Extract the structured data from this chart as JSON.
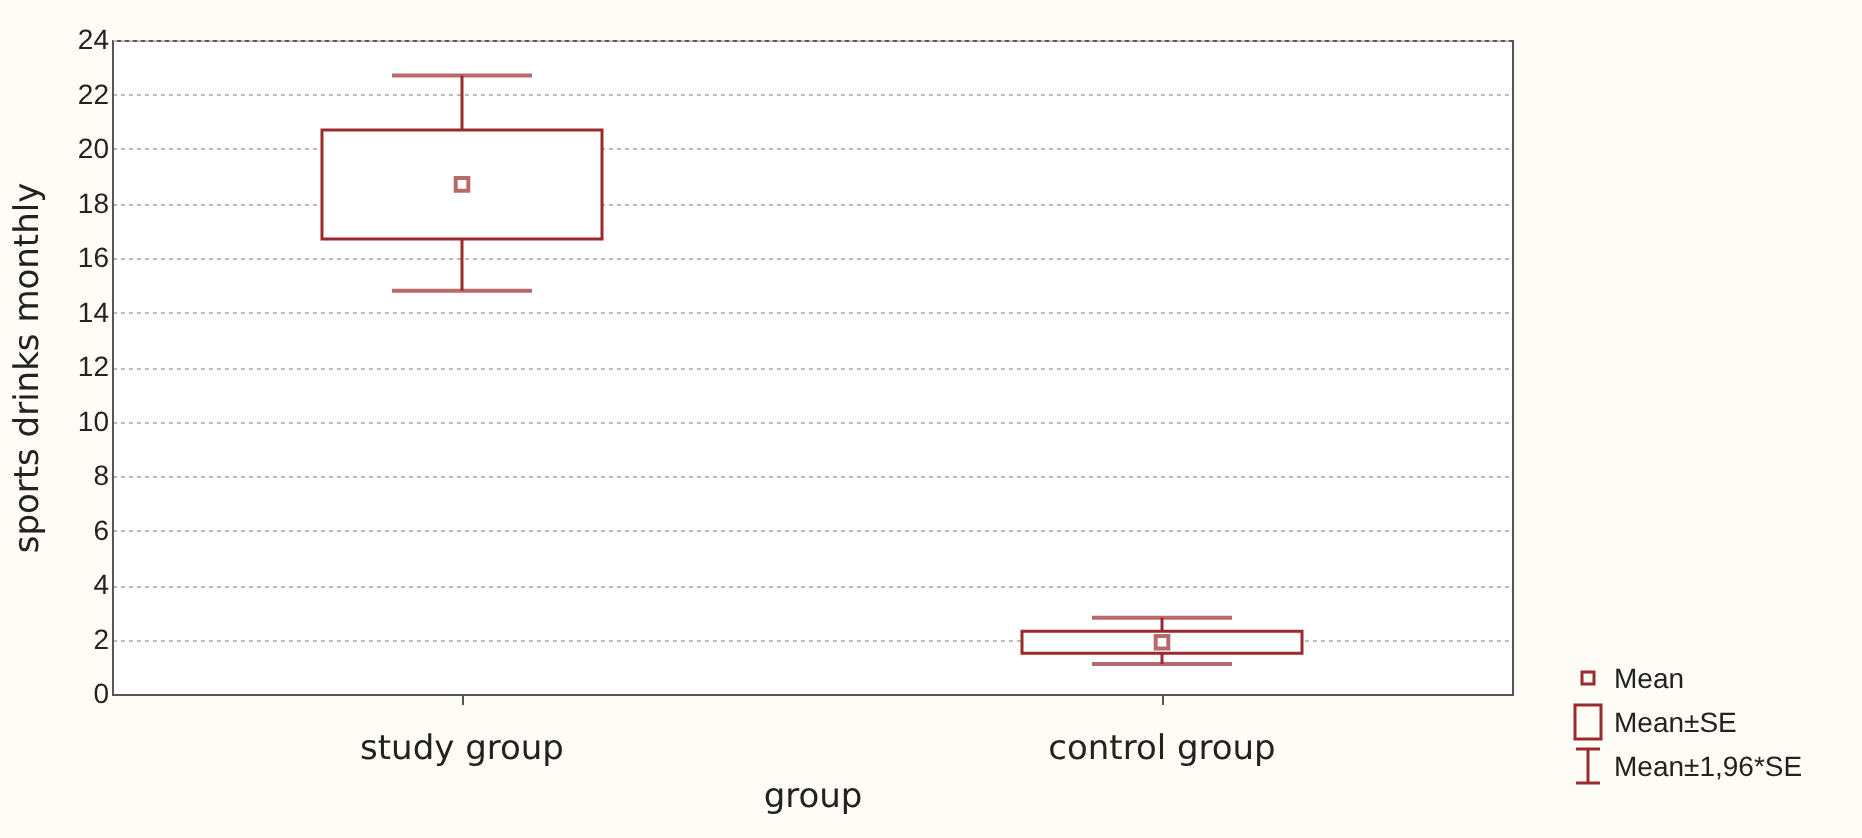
{
  "chart_data": {
    "type": "box",
    "categories": [
      "study group",
      "control group"
    ],
    "xlabel": "group",
    "ylabel": "sports drinks monthly",
    "color": "#9b2a2e",
    "boxes": [
      {
        "low": 14.8,
        "q1": 16.7,
        "q3": 20.7,
        "high": 22.7,
        "mean": 18.7
      },
      {
        "low": 1.1,
        "q1": 1.5,
        "q3": 2.3,
        "high": 2.8,
        "mean": 1.9
      }
    ],
    "ylim": [
      0,
      24
    ],
    "yticks": [
      0,
      2,
      4,
      6,
      8,
      10,
      12,
      14,
      16,
      18,
      20,
      22,
      24
    ],
    "grid": "y",
    "annotations": [
      "Mean",
      "Mean±SE",
      "Mean±1,96*SE"
    ]
  }
}
